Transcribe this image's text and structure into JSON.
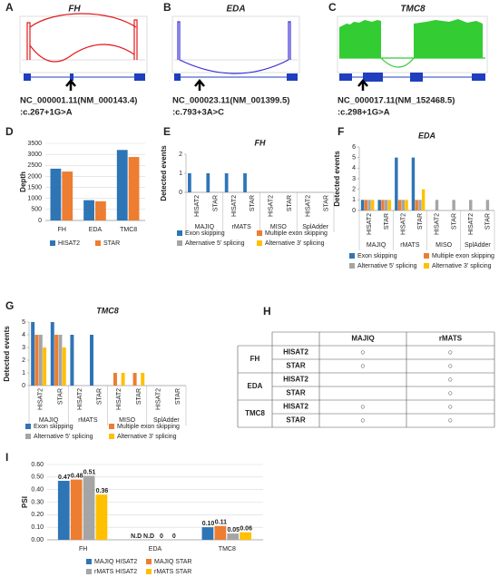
{
  "panel_labels": [
    "A",
    "B",
    "C",
    "D",
    "E",
    "F",
    "G",
    "H",
    "I"
  ],
  "sashimi": [
    {
      "title": "FH",
      "caption": [
        "NC_000001.11(NM_000143.4)",
        ":c.267+1G>A"
      ]
    },
    {
      "title": "EDA",
      "caption": [
        "NC_000023.11(NM_001399.5)",
        ":c.793+3A>C"
      ]
    },
    {
      "title": "TMC8",
      "caption": [
        "NC_000017.11(NM_152468.5)",
        ":c.298+1G>A"
      ]
    }
  ],
  "table": {
    "columns": [
      "MAJIQ",
      "rMATS"
    ],
    "genes": [
      {
        "name": "FH",
        "rows": [
          {
            "aligner": "HISAT2",
            "cells": [
              "○",
              "○"
            ]
          },
          {
            "aligner": "STAR",
            "cells": [
              "○",
              "○"
            ]
          }
        ]
      },
      {
        "name": "EDA",
        "rows": [
          {
            "aligner": "HISAT2",
            "cells": [
              null,
              "○"
            ]
          },
          {
            "aligner": "STAR",
            "cells": [
              null,
              "○"
            ]
          }
        ]
      },
      {
        "name": "TMC8",
        "rows": [
          {
            "aligner": "HISAT2",
            "cells": [
              "○",
              "○"
            ]
          },
          {
            "aligner": "STAR",
            "cells": [
              "○",
              "○"
            ]
          }
        ]
      }
    ]
  },
  "chart_data": [
    {
      "type": "bar",
      "ylabel": "Depth",
      "categories": [
        "FH",
        "EDA",
        "TMC8"
      ],
      "series": [
        {
          "name": "HISAT2",
          "color": "#2e75b6",
          "values": [
            2350,
            920,
            3200
          ]
        },
        {
          "name": "STAR",
          "color": "#ed7d31",
          "values": [
            2220,
            870,
            2880
          ]
        }
      ],
      "ylim": [
        0,
        3500
      ],
      "yticks": [
        0,
        500,
        1000,
        1500,
        2000,
        2500,
        3000,
        3500
      ],
      "grid": true
    },
    {
      "type": "bar",
      "title": "FH",
      "ylabel": "Detected events",
      "groups": [
        "MAJIQ",
        "rMATS",
        "MISO",
        "SplAdder"
      ],
      "categories": [
        "HISAT2",
        "STAR",
        "HISAT2",
        "STAR",
        "HISAT2",
        "STAR",
        "HISAT2",
        "STAR"
      ],
      "series": [
        {
          "name": "Exon skipping",
          "color": "#2e75b6",
          "values": [
            1,
            1,
            1,
            1,
            0,
            0,
            0,
            0
          ]
        },
        {
          "name": "Multiple exon skipping",
          "color": "#ed7d31",
          "values": [
            0,
            0,
            0,
            0,
            0,
            0,
            0,
            0
          ]
        },
        {
          "name": "Alternative 5' splicing",
          "color": "#a5a5a5",
          "values": [
            0,
            0,
            0,
            0,
            0,
            0,
            0,
            0
          ]
        },
        {
          "name": "Alternative 3' splicing",
          "color": "#ffc000",
          "values": [
            0,
            0,
            0,
            0,
            0,
            0,
            0,
            0
          ]
        }
      ],
      "ylim": [
        0,
        2
      ],
      "yticks": [
        0,
        1,
        2
      ],
      "grid": false
    },
    {
      "type": "bar",
      "title": "EDA",
      "ylabel": "Detected events",
      "groups": [
        "MAJIQ",
        "rMATS",
        "MISO",
        "SplAdder"
      ],
      "categories": [
        "HISAT2",
        "STAR",
        "HISAT2",
        "STAR",
        "HISAT2",
        "STAR",
        "HISAT2",
        "STAR"
      ],
      "series": [
        {
          "name": "Exon skipping",
          "color": "#2e75b6",
          "values": [
            1,
            1,
            5,
            5,
            0,
            0,
            0,
            0
          ]
        },
        {
          "name": "Multiple exon skipping",
          "color": "#ed7d31",
          "values": [
            1,
            1,
            1,
            1,
            0,
            0,
            0,
            0
          ]
        },
        {
          "name": "Alternative 5' splicing",
          "color": "#a5a5a5",
          "values": [
            1,
            1,
            1,
            1,
            1,
            1,
            1,
            1
          ]
        },
        {
          "name": "Alternative 3' splicing",
          "color": "#ffc000",
          "values": [
            1,
            1,
            1,
            2,
            0,
            0,
            0,
            0
          ]
        }
      ],
      "ylim": [
        0,
        6
      ],
      "yticks": [
        0,
        1,
        2,
        3,
        4,
        5,
        6
      ],
      "grid": false
    },
    {
      "type": "bar",
      "title": "TMC8",
      "ylabel": "Detected events",
      "groups": [
        "MAJIQ",
        "rMATS",
        "MISO",
        "SplAdder"
      ],
      "categories": [
        "HISAT2",
        "STAR",
        "HISAT2",
        "STAR",
        "HISAT2",
        "STAR",
        "HISAT2",
        "STAR"
      ],
      "series": [
        {
          "name": "Exon skipping",
          "color": "#2e75b6",
          "values": [
            5,
            5,
            4,
            4,
            0,
            0,
            0,
            0
          ]
        },
        {
          "name": "Multiple exon skipping",
          "color": "#ed7d31",
          "values": [
            4,
            4,
            0,
            0,
            1,
            1,
            0,
            0
          ]
        },
        {
          "name": "Alternative 5' splicing",
          "color": "#a5a5a5",
          "values": [
            4,
            4,
            0,
            0,
            0,
            0,
            0,
            0
          ]
        },
        {
          "name": "Alternative 3' splicing",
          "color": "#ffc000",
          "values": [
            3,
            3,
            0,
            0,
            1,
            1,
            0,
            0
          ]
        }
      ],
      "ylim": [
        0,
        5
      ],
      "yticks": [
        0,
        1,
        2,
        3,
        4,
        5
      ],
      "grid": false
    },
    {
      "type": "bar",
      "ylabel": "PSI",
      "categories": [
        "FH",
        "EDA",
        "TMC8"
      ],
      "series": [
        {
          "name": "MAJIQ HISAT2",
          "color": "#2e75b6",
          "values": [
            0.47,
            null,
            0.1
          ],
          "value_labels": [
            "0.47",
            "N.D",
            "0.10"
          ]
        },
        {
          "name": "MAJIQ STAR",
          "color": "#ed7d31",
          "values": [
            0.48,
            null,
            0.11
          ],
          "value_labels": [
            "0.48",
            "N.D",
            "0.11"
          ]
        },
        {
          "name": "rMATS HISAT2",
          "color": "#a5a5a5",
          "values": [
            0.51,
            0,
            0.05
          ],
          "value_labels": [
            "0.51",
            "0",
            "0.05"
          ]
        },
        {
          "name": "rMATS STAR",
          "color": "#ffc000",
          "values": [
            0.36,
            0,
            0.06
          ],
          "value_labels": [
            "0.36",
            "0",
            "0.06"
          ]
        }
      ],
      "ylim": [
        0,
        0.6
      ],
      "yticks": [
        {
          "value": 0,
          "label": "0.00"
        },
        {
          "value": 0.1,
          "label": "0.10"
        },
        {
          "value": 0.2,
          "label": "0.20"
        },
        {
          "value": 0.3,
          "label": "0.30"
        },
        {
          "value": 0.4,
          "label": "0.40"
        },
        {
          "value": 0.5,
          "label": "0.50"
        },
        {
          "value": 0.6,
          "label": "0.60"
        }
      ],
      "grid": true
    }
  ]
}
